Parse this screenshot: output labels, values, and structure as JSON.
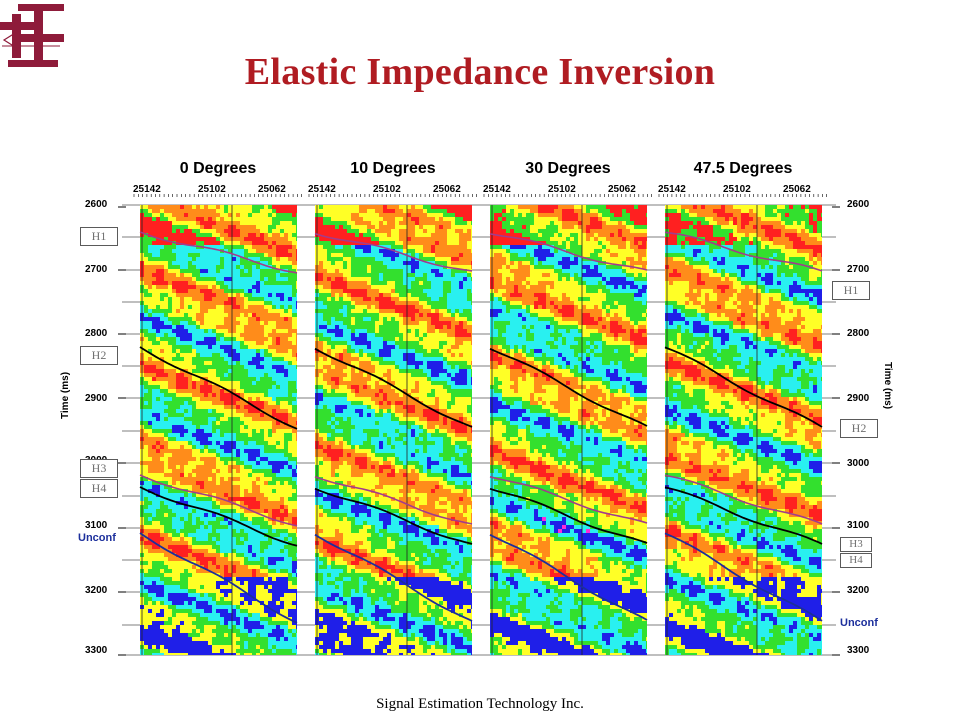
{
  "slide": {
    "title": "Elastic Impedance Inversion",
    "footer": "Signal Estimation Technology Inc."
  },
  "colors": {
    "title": "#b01c22",
    "logo": "#8e1b3a",
    "palette": [
      "#ff2020",
      "#ff8c1a",
      "#ffff26",
      "#33e02e",
      "#29f0f0",
      "#1f1fe8",
      "#ff2bd6"
    ],
    "horizon_purple": "#a23c8c",
    "horizon_black": "#000000",
    "unconformity": "#1c2f9c"
  },
  "figure": {
    "panels": [
      {
        "title": "0 Degrees",
        "traces": [
          "25142",
          "25102",
          "25062"
        ]
      },
      {
        "title": "10 Degrees",
        "traces": [
          "25142",
          "25102",
          "25062"
        ]
      },
      {
        "title": "30 Degrees",
        "traces": [
          "25142",
          "25102",
          "25062"
        ]
      },
      {
        "title": "47.5 Degrees",
        "traces": [
          "25142",
          "25102",
          "25062"
        ]
      }
    ],
    "time_axis": {
      "title": "Time (ms)",
      "ticks": [
        "2600",
        "2700",
        "2800",
        "2900",
        "3000",
        "3100",
        "3200",
        "3300"
      ],
      "left_extra_label": "Unconf",
      "right_extra_label": "Unconf"
    },
    "horizon_labels_left": [
      "H1",
      "H2",
      "H3",
      "H4"
    ],
    "horizon_labels_right": [
      "H1",
      "H2",
      "H3",
      "H4"
    ]
  }
}
